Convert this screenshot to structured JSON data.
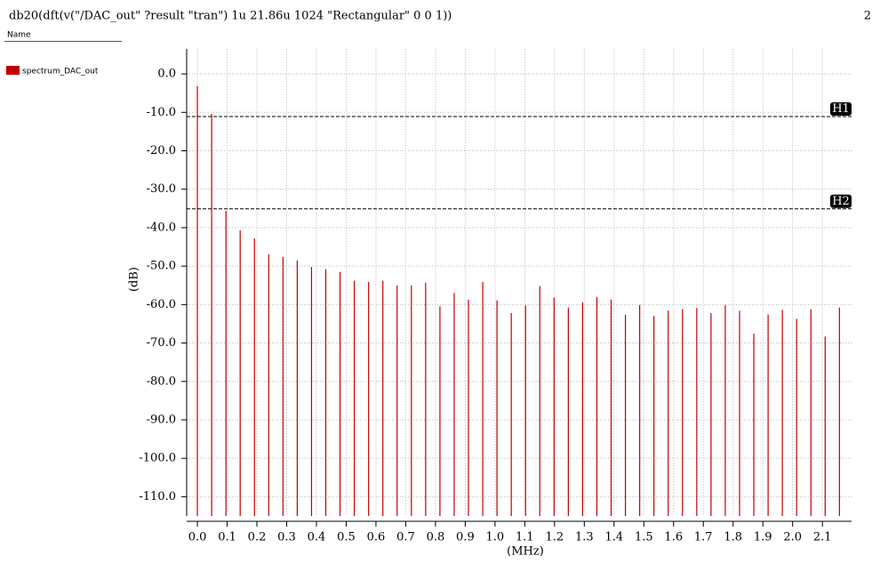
{
  "chart_data": {
    "type": "stem",
    "title": "db20(dft(v(\"/DAC_out\" ?result \"tran\")  1u 21.86u 1024 \"Rectangular\" 0 0 1))",
    "subplot_label": "2",
    "legend_header": "Name",
    "xlabel": "(MHz)",
    "ylabel": "(dB)",
    "x": [
      0,
      0.0479,
      0.0959,
      0.1438,
      0.1918,
      0.2397,
      0.2876,
      0.3356,
      0.3835,
      0.4314,
      0.4794,
      0.5273,
      0.5753,
      0.6232,
      0.6711,
      0.7191,
      0.767,
      0.815,
      0.8629,
      0.9108,
      0.9588,
      1.0067,
      1.0547,
      1.1026,
      1.1505,
      1.1985,
      1.2464,
      1.2944,
      1.3423,
      1.3902,
      1.4382,
      1.4861,
      1.534,
      1.582,
      1.6299,
      1.6779,
      1.7258,
      1.7737,
      1.8217,
      1.8696,
      1.9176,
      1.9655,
      2.0134,
      2.0614,
      2.1093,
      2.1573
    ],
    "series": [
      {
        "name": "spectrum_DAC_out",
        "color": "#c00000",
        "values": [
          -3.2,
          -10.4,
          -35.6,
          -40.7,
          -42.8,
          -46.9,
          -47.6,
          -48.5,
          -50.2,
          -50.8,
          -51.5,
          -53.8,
          -54.1,
          -53.8,
          -55.0,
          -55.0,
          -54.3,
          -60.5,
          -57.0,
          -58.7,
          -54.1,
          -58.9,
          -62.2,
          -60.3,
          -55.2,
          -58.2,
          -60.8,
          -59.4,
          -58.0,
          -58.7,
          -62.6,
          -60.1,
          -63.0,
          -61.6,
          -61.2,
          -60.9,
          -62.2,
          -60.1,
          -61.6,
          -67.6,
          -62.6,
          -61.4,
          -63.7,
          -61.2,
          -68.3,
          -60.8
        ]
      }
    ],
    "markers": [
      {
        "label": "H1",
        "value": -11.1
      },
      {
        "label": "H2",
        "value": -35.1
      }
    ],
    "xlim": [
      -0.036,
      2.198
    ],
    "ylim": [
      -115,
      6.5
    ],
    "xticks": [
      {
        "value": 0,
        "label": "0.0"
      },
      0.1,
      0.2,
      0.3,
      0.4,
      0.5,
      0.6,
      0.7,
      0.8,
      0.9,
      {
        "value": 1,
        "label": "1.0"
      },
      1.1,
      1.2,
      1.3,
      1.4,
      1.5,
      1.6,
      1.7,
      1.8,
      1.9,
      {
        "value": 2,
        "label": "2.0"
      },
      2.1
    ],
    "yticks": [
      {
        "value": 0,
        "label": "0.0"
      },
      {
        "value": -10,
        "label": "-10.0"
      },
      {
        "value": -20,
        "label": "-20.0"
      },
      {
        "value": -30,
        "label": "-30.0"
      },
      {
        "value": -40,
        "label": "-40.0"
      },
      {
        "value": -50,
        "label": "-50.0"
      },
      {
        "value": -60,
        "label": "-60.0"
      },
      {
        "value": -70,
        "label": "-70.0"
      },
      {
        "value": -80,
        "label": "-80.0"
      },
      {
        "value": -90,
        "label": "-90.0"
      },
      {
        "value": -100,
        "label": "-100.0"
      },
      {
        "value": -110,
        "label": "-110.0"
      }
    ],
    "grid": true
  }
}
